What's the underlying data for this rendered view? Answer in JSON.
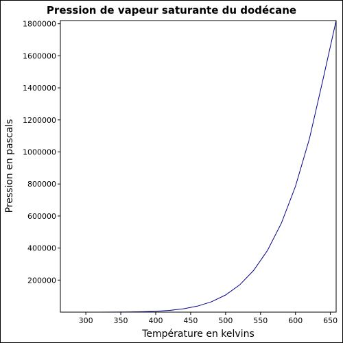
{
  "chart_data": {
    "type": "line",
    "title": "Pression de vapeur saturante du dodécane",
    "x_label": "Température en kelvins",
    "y_label": "Pression en pascals",
    "x": [
      263.57,
      280,
      300,
      320,
      340,
      360,
      380,
      400,
      420,
      440,
      460,
      480,
      500,
      520,
      540,
      560,
      580,
      600,
      620,
      640,
      658.2
    ],
    "series": [
      {
        "color": "#00008b",
        "values": [
          2.3,
          8.9,
          37,
          128,
          384,
          1022,
          2449,
          5381,
          10970,
          20950,
          37830,
          65010,
          107000,
          169500,
          259500,
          385400,
          556900,
          785200,
          1083000,
          1464000,
          1820000
        ]
      }
    ],
    "xlim": [
      263.57,
      658.2
    ],
    "xticks": [
      300,
      350,
      400,
      450,
      500,
      550,
      600,
      650
    ],
    "ylim": [
      0,
      1820000
    ],
    "yticks": [
      200000,
      400000,
      600000,
      800000,
      1000000,
      1200000,
      1400000,
      1600000,
      1800000
    ]
  }
}
